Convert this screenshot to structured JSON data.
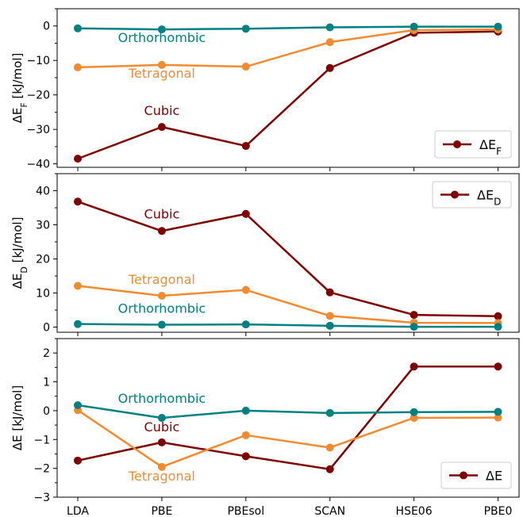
{
  "colors": {
    "cubic": "#7f0000",
    "tetragonal": "#f28a30",
    "orthorhombic": "#008080"
  },
  "chart_data": [
    {
      "type": "line",
      "ylabel_main": "ΔE",
      "ylabel_sub": "F",
      "ylabel_unit": " [kJ/mol]",
      "ylim": [
        -41,
        5
      ],
      "yticks": [
        0,
        -10,
        -20,
        -30,
        -40
      ],
      "categories": [
        "LDA",
        "PBE",
        "PBEsol",
        "SCAN",
        "HSE06",
        "PBE0"
      ],
      "series": [
        {
          "name": "Cubic",
          "key": "cubic",
          "values": [
            -38.5,
            -29.3,
            -34.8,
            -12.2,
            -2.0,
            -1.6
          ]
        },
        {
          "name": "Tetragonal",
          "key": "tetragonal",
          "values": [
            -12.0,
            -11.3,
            -11.8,
            -4.7,
            -1.2,
            -1.0
          ]
        },
        {
          "name": "Orthorhombic",
          "key": "orthorhombic",
          "values": [
            -0.7,
            -1.0,
            -0.8,
            -0.4,
            -0.2,
            -0.2
          ]
        }
      ],
      "legend": {
        "main": "ΔE",
        "sub": "F",
        "position": "lower-right"
      }
    },
    {
      "type": "line",
      "ylabel_main": "ΔE",
      "ylabel_sub": "D",
      "ylabel_unit": " [kJ/mol]",
      "ylim": [
        -1.5,
        45
      ],
      "yticks": [
        0,
        10,
        20,
        30,
        40
      ],
      "categories": [
        "LDA",
        "PBE",
        "PBEsol",
        "SCAN",
        "HSE06",
        "PBE0"
      ],
      "series": [
        {
          "name": "Cubic",
          "key": "cubic",
          "values": [
            36.8,
            28.2,
            33.2,
            10.2,
            3.6,
            3.2
          ]
        },
        {
          "name": "Tetragonal",
          "key": "tetragonal",
          "values": [
            12.1,
            9.2,
            10.9,
            3.3,
            1.3,
            1.2
          ]
        },
        {
          "name": "Orthorhombic",
          "key": "orthorhombic",
          "values": [
            0.9,
            0.7,
            0.8,
            0.4,
            0.1,
            0.1
          ]
        }
      ],
      "legend": {
        "main": "ΔE",
        "sub": "D",
        "position": "upper-right"
      }
    },
    {
      "type": "line",
      "ylabel_main": "ΔE",
      "ylabel_sub": "",
      "ylabel_unit": " [kJ/mol]",
      "ylim": [
        -3,
        2.5
      ],
      "yticks": [
        2,
        1,
        0,
        -1,
        -2,
        -3
      ],
      "categories": [
        "LDA",
        "PBE",
        "PBEsol",
        "SCAN",
        "HSE06",
        "PBE0"
      ],
      "series": [
        {
          "name": "Cubic",
          "key": "cubic",
          "values": [
            -1.73,
            -1.1,
            -1.58,
            -2.03,
            1.53,
            1.53
          ]
        },
        {
          "name": "Tetragonal",
          "key": "tetragonal",
          "values": [
            0.02,
            -1.95,
            -0.85,
            -1.28,
            -0.25,
            -0.24
          ]
        },
        {
          "name": "Orthorhombic",
          "key": "orthorhombic",
          "values": [
            0.19,
            -0.25,
            0.0,
            -0.08,
            -0.05,
            -0.04
          ]
        }
      ],
      "legend": {
        "main": "ΔE",
        "sub": "",
        "position": "lower-right"
      }
    }
  ]
}
